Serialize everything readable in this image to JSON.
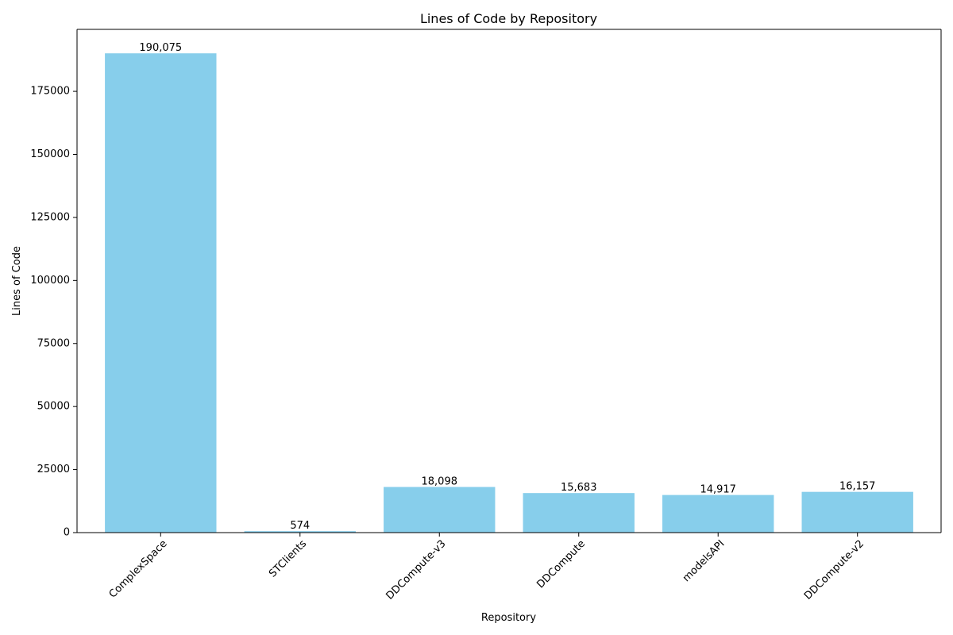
{
  "chart_data": {
    "type": "bar",
    "title": "Lines of Code by Repository",
    "xlabel": "Repository",
    "ylabel": "Lines of Code",
    "categories": [
      "ComplexSpace",
      "STClients",
      "DDCompute-v3",
      "DDCompute",
      "modelsAPI",
      "DDCompute-v2"
    ],
    "values": [
      190075,
      574,
      18098,
      15683,
      14917,
      16157
    ],
    "value_labels": [
      "190,075",
      "574",
      "18,098",
      "15,683",
      "14,917",
      "16,157"
    ],
    "ylim": [
      0,
      199579
    ],
    "yticks": [
      0,
      25000,
      50000,
      75000,
      100000,
      125000,
      150000,
      175000
    ],
    "ytick_labels": [
      "0",
      "25000",
      "50000",
      "75000",
      "100000",
      "125000",
      "150000",
      "175000"
    ],
    "bar_color": "#87ceeb",
    "grid": false,
    "legend": false,
    "xtick_rotation": "45°"
  }
}
